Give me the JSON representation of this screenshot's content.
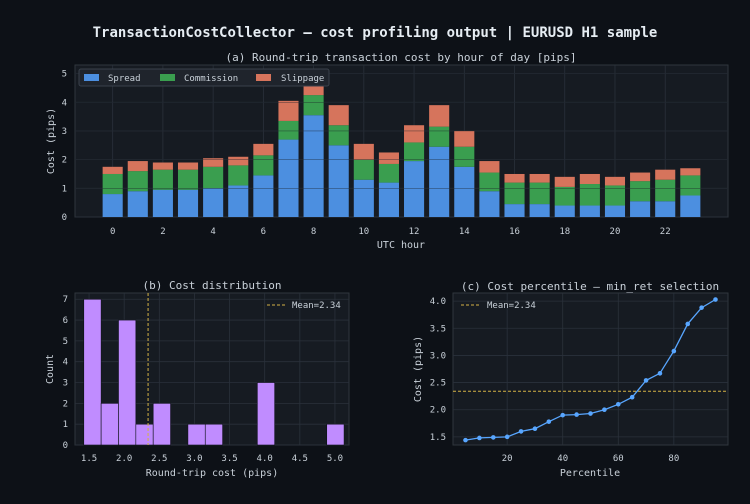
{
  "title": "TransactionCostCollector — cost profiling output  |  EURUSD H1 sample",
  "colors": {
    "background": "#0d1117",
    "axes_bg": "#161b22",
    "grid": "#2a313b",
    "text": "#c9d1d9",
    "spread": "#4c8fe0",
    "commission": "#3a9e4f",
    "slippage": "#d6745c",
    "histogram": "#c08cff",
    "percentile_line": "#58a6ff",
    "mean_line": "#d4b245"
  },
  "chart_data": [
    {
      "type": "bar",
      "stacked": true,
      "title": "(a)  Round-trip transaction cost by hour of day  [pips]",
      "xlabel": "UTC hour",
      "ylabel": "Cost (pips)",
      "xlim": [
        -1.5,
        24.5
      ],
      "ylim": [
        0,
        5.3
      ],
      "xticks": [
        0,
        2,
        4,
        6,
        8,
        10,
        12,
        14,
        16,
        18,
        20,
        22
      ],
      "yticks": [
        0,
        1,
        2,
        3,
        4,
        5
      ],
      "grid": true,
      "legend": "top-left",
      "categories": [
        0,
        1,
        2,
        3,
        4,
        5,
        6,
        7,
        8,
        9,
        10,
        11,
        12,
        13,
        14,
        15,
        16,
        17,
        18,
        19,
        20,
        21,
        22,
        23
      ],
      "series": [
        {
          "name": "Spread",
          "color": "#4c8fe0",
          "values": [
            0.8,
            0.9,
            0.95,
            0.95,
            1.0,
            1.1,
            1.45,
            2.7,
            3.55,
            2.5,
            1.3,
            1.2,
            1.95,
            2.45,
            1.75,
            0.9,
            0.45,
            0.45,
            0.4,
            0.4,
            0.4,
            0.55,
            0.55,
            0.75
          ]
        },
        {
          "name": "Commission",
          "color": "#3a9e4f",
          "values": [
            0.7,
            0.7,
            0.7,
            0.7,
            0.75,
            0.7,
            0.7,
            0.65,
            0.7,
            0.7,
            0.7,
            0.65,
            0.65,
            0.7,
            0.7,
            0.65,
            0.75,
            0.75,
            0.65,
            0.75,
            0.7,
            0.7,
            0.75,
            0.7
          ]
        },
        {
          "name": "Slippage",
          "color": "#d6745c",
          "values": [
            0.25,
            0.35,
            0.25,
            0.25,
            0.3,
            0.3,
            0.4,
            0.7,
            0.8,
            0.7,
            0.55,
            0.4,
            0.6,
            0.75,
            0.55,
            0.4,
            0.3,
            0.3,
            0.35,
            0.35,
            0.3,
            0.3,
            0.35,
            0.25
          ]
        }
      ]
    },
    {
      "type": "bar",
      "histogram": true,
      "title": "(b)  Cost distribution",
      "xlabel": "Round-trip cost (pips)",
      "ylabel": "Count",
      "xlim": [
        1.3,
        5.2
      ],
      "ylim": [
        0,
        7.3
      ],
      "xticks": [
        "1.5",
        "2.0",
        "2.5",
        "3.0",
        "3.5",
        "4.0",
        "4.5",
        "5.0"
      ],
      "yticks": [
        0,
        1,
        2,
        3,
        4,
        5,
        6,
        7
      ],
      "grid": true,
      "legend": "top-right",
      "mean": 2.34,
      "mean_label": "Mean=2.34",
      "bins": [
        {
          "x0": 1.425,
          "x1": 1.672,
          "count": 7
        },
        {
          "x0": 1.672,
          "x1": 1.919,
          "count": 2
        },
        {
          "x0": 1.919,
          "x1": 2.166,
          "count": 6
        },
        {
          "x0": 2.166,
          "x1": 2.413,
          "count": 1
        },
        {
          "x0": 2.413,
          "x1": 2.66,
          "count": 2
        },
        {
          "x0": 2.66,
          "x1": 2.907,
          "count": 0
        },
        {
          "x0": 2.907,
          "x1": 3.154,
          "count": 1
        },
        {
          "x0": 3.154,
          "x1": 3.401,
          "count": 1
        },
        {
          "x0": 3.401,
          "x1": 3.648,
          "count": 0
        },
        {
          "x0": 3.648,
          "x1": 3.895,
          "count": 0
        },
        {
          "x0": 3.895,
          "x1": 4.142,
          "count": 3
        },
        {
          "x0": 4.142,
          "x1": 4.389,
          "count": 0
        },
        {
          "x0": 4.389,
          "x1": 4.636,
          "count": 0
        },
        {
          "x0": 4.636,
          "x1": 4.883,
          "count": 0
        },
        {
          "x0": 4.883,
          "x1": 5.13,
          "count": 1
        }
      ]
    },
    {
      "type": "line",
      "title": "(c)  Cost percentile — min_ret selection",
      "xlabel": "Percentile",
      "ylabel": "Cost (pips)",
      "xlim": [
        0.5,
        99.5
      ],
      "ylim": [
        1.35,
        4.15
      ],
      "xticks": [
        20,
        40,
        60,
        80
      ],
      "yticks": [
        "1.5",
        "2.0",
        "2.5",
        "3.0",
        "3.5",
        "4.0"
      ],
      "grid": true,
      "legend": "top-left",
      "mean": 2.34,
      "mean_label": "Mean=2.34",
      "x": [
        5,
        10,
        15,
        20,
        25,
        30,
        35,
        40,
        45,
        50,
        55,
        60,
        65,
        70,
        75,
        80,
        85,
        90,
        95
      ],
      "y": [
        1.44,
        1.48,
        1.49,
        1.5,
        1.6,
        1.65,
        1.78,
        1.9,
        1.91,
        1.93,
        2.0,
        2.1,
        2.23,
        2.54,
        2.67,
        3.08,
        3.58,
        3.88,
        4.03
      ]
    }
  ]
}
